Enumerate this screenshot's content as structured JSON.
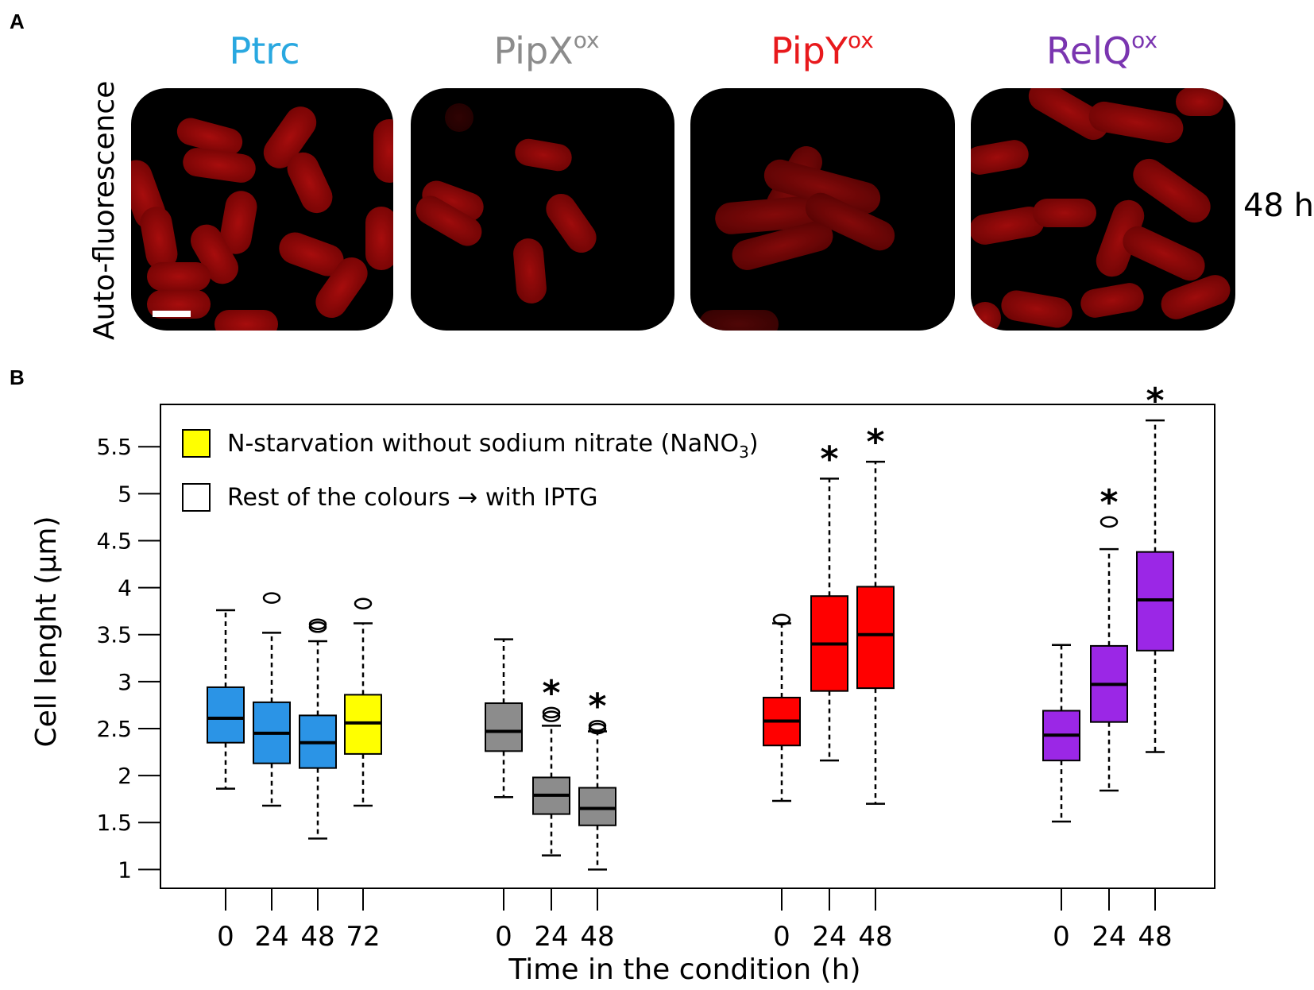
{
  "panel_a": {
    "letter": "A",
    "side_label": "Auto-fluorescence",
    "time_label": "48 h",
    "strains": [
      {
        "name": "Ptrc",
        "sup": "",
        "color": "#29a8e0"
      },
      {
        "name": "PipX",
        "sup": "ox",
        "color": "#8c8c8c"
      },
      {
        "name": "PipY",
        "sup": "ox",
        "color": "#e8191c"
      },
      {
        "name": "RelQ",
        "sup": "ox",
        "color": "#7a35b0"
      }
    ]
  },
  "panel_b": {
    "letter": "B",
    "legend": {
      "item1_main": "N-starvation without sodium nitrate (NaNO",
      "item1_sub": "3",
      "item1_end": ")",
      "item1_color": "#ffff00",
      "item2": "Rest of the colours → with IPTG",
      "item2_color": "#ffffff"
    }
  },
  "chart_data": {
    "type": "box",
    "ylabel": "Cell lenght (µm)",
    "xlabel": "Time in the condition (h)",
    "ylim": [
      0.8,
      5.95
    ],
    "yticks": [
      1,
      1.5,
      2,
      2.5,
      3,
      3.5,
      4,
      4.5,
      5,
      5.5
    ],
    "ytick_labels": [
      "1",
      "1.5",
      "2",
      "2.5",
      "3",
      "3.5",
      "4",
      "4.5",
      "5",
      "5.5"
    ],
    "groups": [
      {
        "color": "#2b94e6",
        "boxes": [
          {
            "x": "0",
            "min": 1.86,
            "q1": 2.35,
            "median": 2.61,
            "q3": 2.94,
            "max": 3.76,
            "outliers": [],
            "sig": false
          },
          {
            "x": "24",
            "min": 1.68,
            "q1": 2.13,
            "median": 2.45,
            "q3": 2.78,
            "max": 3.52,
            "outliers": [
              3.89
            ],
            "sig": false
          },
          {
            "x": "48",
            "min": 1.33,
            "q1": 2.08,
            "median": 2.35,
            "q3": 2.64,
            "max": 3.43,
            "outliers": [
              3.58,
              3.61
            ],
            "sig": false
          },
          {
            "x": "72",
            "min": 1.68,
            "q1": 2.23,
            "median": 2.56,
            "q3": 2.86,
            "max": 3.62,
            "outliers": [
              3.83
            ],
            "sig": false,
            "color": "#ffff00"
          }
        ]
      },
      {
        "color": "#8c8c8c",
        "boxes": [
          {
            "x": "0",
            "min": 1.77,
            "q1": 2.26,
            "median": 2.47,
            "q3": 2.77,
            "max": 3.45,
            "outliers": [],
            "sig": false
          },
          {
            "x": "24",
            "min": 1.15,
            "q1": 1.59,
            "median": 1.79,
            "q3": 1.98,
            "max": 2.53,
            "outliers": [
              2.63,
              2.67
            ],
            "sig": true
          },
          {
            "x": "48",
            "min": 1.0,
            "q1": 1.47,
            "median": 1.65,
            "q3": 1.87,
            "max": 2.47,
            "outliers": [
              2.5,
              2.53
            ],
            "sig": true
          }
        ]
      },
      {
        "color": "#ff0000",
        "boxes": [
          {
            "x": "0",
            "min": 1.73,
            "q1": 2.32,
            "median": 2.58,
            "q3": 2.83,
            "max": 3.62,
            "outliers": [
              3.66
            ],
            "sig": false
          },
          {
            "x": "24",
            "min": 2.16,
            "q1": 2.9,
            "median": 3.4,
            "q3": 3.91,
            "max": 5.16,
            "outliers": [],
            "sig": true
          },
          {
            "x": "48",
            "min": 1.7,
            "q1": 2.93,
            "median": 3.5,
            "q3": 4.01,
            "max": 5.34,
            "outliers": [],
            "sig": true
          }
        ]
      },
      {
        "color": "#9b27e6",
        "boxes": [
          {
            "x": "0",
            "min": 1.51,
            "q1": 2.16,
            "median": 2.43,
            "q3": 2.69,
            "max": 3.39,
            "outliers": [],
            "sig": false
          },
          {
            "x": "24",
            "min": 1.84,
            "q1": 2.57,
            "median": 2.97,
            "q3": 3.38,
            "max": 4.41,
            "outliers": [
              4.7
            ],
            "sig": true
          },
          {
            "x": "48",
            "min": 2.25,
            "q1": 3.33,
            "median": 3.87,
            "q3": 4.38,
            "max": 5.78,
            "outliers": [],
            "sig": true
          }
        ]
      }
    ]
  }
}
